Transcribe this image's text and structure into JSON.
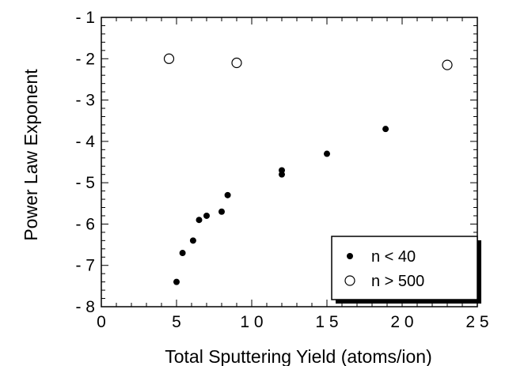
{
  "chart_data": {
    "type": "scatter",
    "xlabel": "Total Sputtering Yield (atoms/ion)",
    "ylabel": "Power Law Exponent",
    "xlim": [
      0,
      25
    ],
    "ylim": [
      -8,
      -1
    ],
    "x_ticks": [
      0,
      5,
      10,
      15,
      20,
      25
    ],
    "x_tick_labels": [
      "0",
      "5",
      "1 0",
      "1 5",
      "2 0",
      "2 5"
    ],
    "y_ticks": [
      -1,
      -2,
      -3,
      -4,
      -5,
      -6,
      -7,
      -8
    ],
    "y_tick_labels": [
      "- 1",
      "- 2",
      "- 3",
      "- 4",
      "- 5",
      "- 6",
      "- 7",
      "- 8"
    ],
    "grid": false,
    "legend_position": "bottom-right",
    "series": [
      {
        "name": "n < 40",
        "marker": "filled-circle",
        "color": "#000000",
        "points": [
          {
            "x": 5.0,
            "y": -7.4
          },
          {
            "x": 5.4,
            "y": -6.7
          },
          {
            "x": 6.1,
            "y": -6.4
          },
          {
            "x": 6.5,
            "y": -5.9
          },
          {
            "x": 7.0,
            "y": -5.8
          },
          {
            "x": 8.0,
            "y": -5.7
          },
          {
            "x": 8.4,
            "y": -5.3
          },
          {
            "x": 12.0,
            "y": -4.7
          },
          {
            "x": 12.0,
            "y": -4.8
          },
          {
            "x": 15.0,
            "y": -4.3
          },
          {
            "x": 18.9,
            "y": -3.7
          }
        ]
      },
      {
        "name": "n > 500",
        "marker": "open-circle",
        "color": "#000000",
        "points": [
          {
            "x": 4.5,
            "y": -2.0
          },
          {
            "x": 9.0,
            "y": -2.1
          },
          {
            "x": 23.0,
            "y": -2.15
          }
        ]
      }
    ]
  }
}
